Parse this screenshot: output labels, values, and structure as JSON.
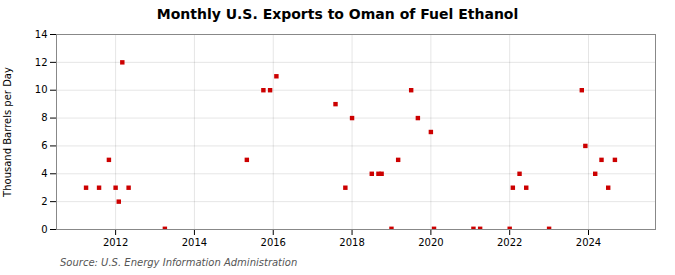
{
  "chart_data": {
    "type": "scatter",
    "title": "Monthly U.S. Exports to Oman of Fuel Ethanol",
    "ylabel": "Thousand Barrels per Day",
    "source": "Source: U.S. Energy Information Administration",
    "color": "#cc0000",
    "marker": "square",
    "grid": true,
    "xlim": [
      2010.5,
      2025.7
    ],
    "xticks": [
      2012,
      2014,
      2016,
      2018,
      2020,
      2022,
      2024
    ],
    "ylim": [
      0,
      14
    ],
    "yticks": [
      0,
      2,
      4,
      6,
      8,
      10,
      12,
      14
    ],
    "x": [
      2011.25,
      2011.58,
      2011.83,
      2012.0,
      2012.08,
      2012.17,
      2012.33,
      2013.25,
      2015.33,
      2015.75,
      2015.92,
      2016.08,
      2017.58,
      2017.83,
      2018.0,
      2018.5,
      2018.67,
      2018.75,
      2019.0,
      2019.17,
      2019.5,
      2019.67,
      2020.0,
      2020.08,
      2021.08,
      2021.25,
      2022.0,
      2022.08,
      2022.25,
      2022.42,
      2023.0,
      2023.83,
      2023.92,
      2024.17,
      2024.33,
      2024.5,
      2024.67
    ],
    "values": [
      3,
      3,
      5,
      3,
      2,
      12,
      3,
      0.05,
      5,
      10,
      10,
      11,
      9,
      3,
      8,
      4,
      4,
      4,
      0.05,
      5,
      10,
      8,
      7,
      0.05,
      0.05,
      0.05,
      0.05,
      3,
      4,
      3,
      0.05,
      10,
      6,
      4,
      5,
      3,
      5
    ]
  }
}
